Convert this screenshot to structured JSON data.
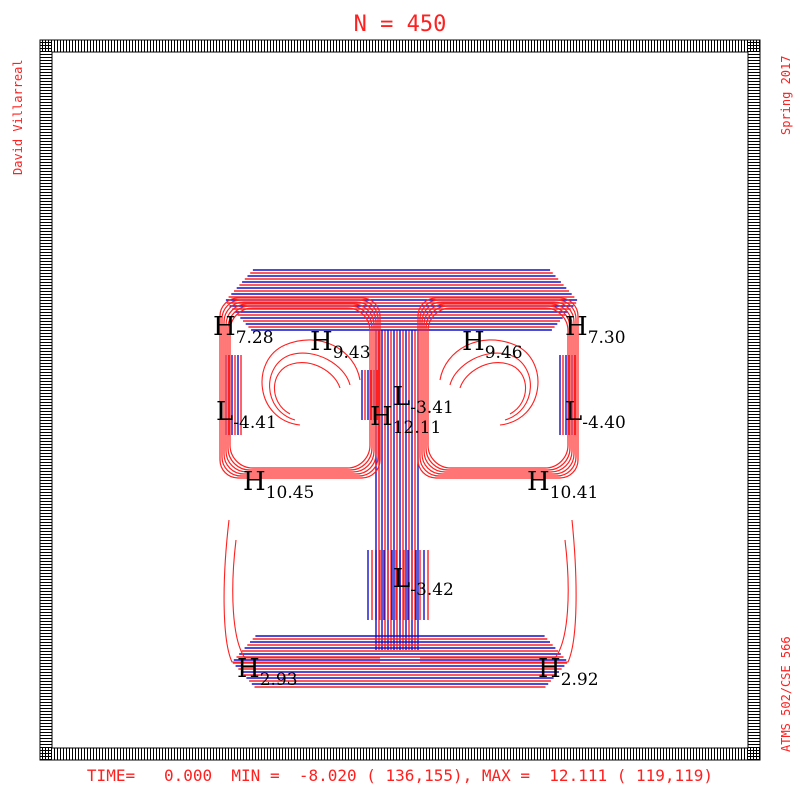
{
  "colors": {
    "positive_contour": "#ff2020",
    "negative_contour": "#1010c8",
    "label_text": "#000000",
    "frame": "#000000",
    "annotation_text": "#ff2020"
  },
  "header": {
    "title": "N = 450"
  },
  "side_text": {
    "left": "David Villarreal",
    "right_top": "Spring 2017",
    "right_bottom": "ATMS 502/CSE 566"
  },
  "footer": {
    "status": "TIME=   0.000  MIN =  -8.020 ( 136,155), MAX =  12.111 ( 119,119)"
  },
  "chart_data": {
    "type": "contour",
    "title": "N = 450",
    "grid_size": [
      140,
      140
    ],
    "xlim": [
      1,
      140
    ],
    "ylim": [
      1,
      140
    ],
    "time": 0.0,
    "min": {
      "value": -8.02,
      "i": 136,
      "j": 155
    },
    "max": {
      "value": 12.111,
      "i": 119,
      "j": 119
    },
    "extrema_labels": [
      {
        "kind": "H",
        "value": "7.28"
      },
      {
        "kind": "H",
        "value": "9.43"
      },
      {
        "kind": "H",
        "value": "9.46"
      },
      {
        "kind": "H",
        "value": "7.30"
      },
      {
        "kind": "L",
        "value": "-4.41"
      },
      {
        "kind": "L",
        "value": "-3.41"
      },
      {
        "kind": "H",
        "value": "12.11"
      },
      {
        "kind": "L",
        "value": "-4.40"
      },
      {
        "kind": "H",
        "value": "10.45"
      },
      {
        "kind": "H",
        "value": "10.41"
      },
      {
        "kind": "L",
        "value": "-3.42"
      },
      {
        "kind": "H",
        "value": "2.93"
      },
      {
        "kind": "H",
        "value": "2.92"
      }
    ]
  }
}
